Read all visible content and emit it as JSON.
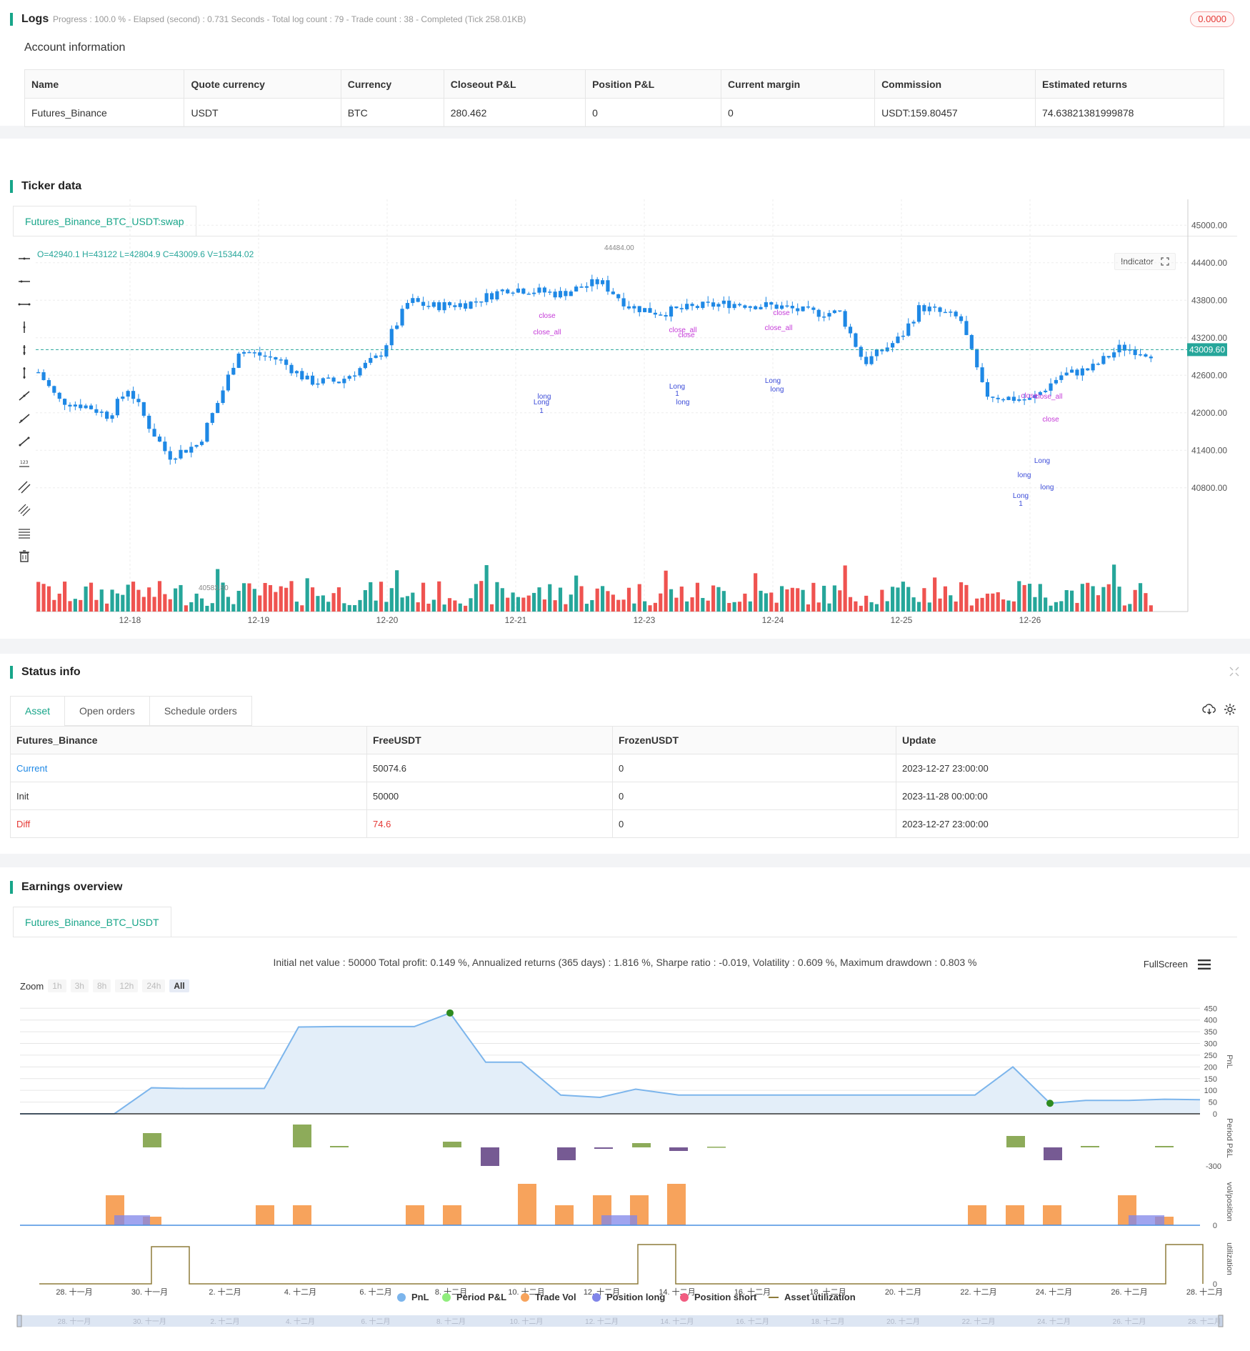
{
  "logs": {
    "title": "Logs",
    "meta": "Progress : 100.0 % - Elapsed (second) : 0.731  Seconds - Total log count : 79 - Trade count : 38 - Completed (Tick 258.01KB)",
    "badge": "0.0000"
  },
  "account": {
    "title": "Account information",
    "headers": [
      "Name",
      "Quote currency",
      "Currency",
      "Closeout P&L",
      "Position P&L",
      "Current margin",
      "Commission",
      "Estimated returns"
    ],
    "row": [
      "Futures_Binance",
      "USDT",
      "BTC",
      "280.462",
      "0",
      "0",
      "USDT:159.80457",
      "74.63821381999878"
    ]
  },
  "ticker": {
    "title": "Ticker data",
    "tab": "Futures_Binance_BTC_USDT:swap",
    "ohlc": "O=42940.1 H=43122 L=42804.9 C=43009.6 V=15344.02",
    "indicator_button": "Indicator",
    "price_labels": [
      "45000.00",
      "44400.00",
      "43800.00",
      "43200.00",
      "42600.00",
      "42000.00",
      "41400.00",
      "40800.00"
    ],
    "current_price": "43009.60",
    "high_marker": "44484.00",
    "low_marker": "40583.80",
    "date_labels": [
      "12-18",
      "12-19",
      "12-20",
      "12-21",
      "12-23",
      "12-24",
      "12-25",
      "12-26"
    ],
    "signals": [
      "close",
      "close_all",
      "Long",
      "1",
      "long",
      "close",
      "close_all",
      "Long",
      "1",
      "long",
      "close",
      "close_all",
      "Long",
      "long",
      "close",
      "close_all",
      "close",
      "long",
      "Long",
      "1",
      "Long",
      "long"
    ]
  },
  "status": {
    "title": "Status info",
    "tabs": [
      "Asset",
      "Open orders",
      "Schedule orders"
    ],
    "headers": [
      "Futures_Binance",
      "FreeUSDT",
      "FrozenUSDT",
      "Update"
    ],
    "rows": [
      [
        "Current",
        "50074.6",
        "0",
        "2023-12-27 23:00:00"
      ],
      [
        "Init",
        "50000",
        "0",
        "2023-11-28 00:00:00"
      ],
      [
        "Diff",
        "74.6",
        "0",
        "2023-12-27 23:00:00"
      ]
    ]
  },
  "earnings": {
    "title": "Earnings overview",
    "tab": "Futures_Binance_BTC_USDT",
    "summary": "Initial net value : 50000 Total profit: 0.149 %, Annualized returns (365 days) : 1.816 %, Sharpe ratio : -0.019, Volatility : 0.609 %, Maximum drawdown : 0.803 %",
    "fullscreen": "FullScreen",
    "zoom_label": "Zoom",
    "zoom_options": [
      "1h",
      "3h",
      "8h",
      "12h",
      "24h",
      "All"
    ],
    "pnl_ticks": [
      "450",
      "400",
      "350",
      "300",
      "250",
      "200",
      "150",
      "100",
      "50",
      "0"
    ],
    "period_tick": "-300",
    "vol_tick": "0",
    "util_tick": "0",
    "axis_titles": [
      "PnL",
      "Period P&L",
      "vol/position",
      "utilization"
    ],
    "date_labels": [
      "28. 十一月",
      "30. 十一月",
      "2. 十二月",
      "4. 十二月",
      "6. 十二月",
      "8. 十二月",
      "10. 十二月",
      "12. 十二月",
      "14. 十二月",
      "16. 十二月",
      "18. 十二月",
      "20. 十二月",
      "22. 十二月",
      "24. 十二月",
      "26. 十二月",
      "28. 十二月"
    ],
    "legend": [
      {
        "label": "PnL",
        "color": "#7cb5ec"
      },
      {
        "label": "Period P&L",
        "color": "#90ed7d"
      },
      {
        "label": "Trade Vol",
        "color": "#f7a35c"
      },
      {
        "label": "Position long",
        "color": "#8085e9"
      },
      {
        "label": "Position short",
        "color": "#f15c80"
      },
      {
        "label": "Asset utilization",
        "color": "#8d7b3a"
      }
    ],
    "colors": {
      "accent": "#17a589",
      "up": "#26a69a",
      "down": "#ef5350",
      "candle_up": "#1e88e5"
    }
  }
}
